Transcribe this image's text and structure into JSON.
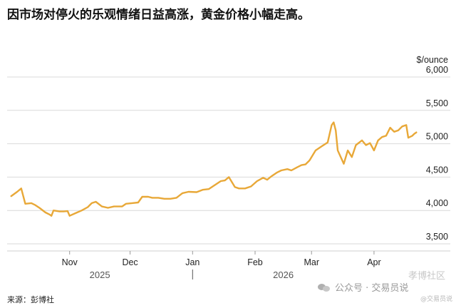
{
  "headline": "因市场对停火的乐观情绪日益高涨，黄金价格小幅走高。",
  "source": "来源：彭博社",
  "watermark": {
    "main": "公众号 · 交易员说",
    "small": "@交易员说",
    "faint": "孝博社区"
  },
  "chart_data": {
    "type": "line",
    "title": "",
    "ylabel": "$/ounce",
    "ylim": [
      3500,
      6000
    ],
    "yticks": [
      3500,
      4000,
      4500,
      5000,
      5500,
      6000
    ],
    "ytick_labels": [
      "3,500",
      "4,000",
      "4,500",
      "5,000",
      "5,500",
      "6,000"
    ],
    "xlim": [
      "2025-10-01",
      "2026-04-24"
    ],
    "xticks": [
      {
        "date": "2025-11-01",
        "label": "Nov"
      },
      {
        "date": "2025-12-01",
        "label": "Dec"
      },
      {
        "date": "2026-01-01",
        "label": "Jan"
      },
      {
        "date": "2026-02-01",
        "label": "Feb"
      },
      {
        "date": "2026-03-01",
        "label": "Mar"
      },
      {
        "date": "2026-04-01",
        "label": "Apr"
      }
    ],
    "year_labels": [
      {
        "date": "2025-11-16",
        "label": "2025"
      },
      {
        "date": "2026-02-15",
        "label": "2026"
      }
    ],
    "year_separators": [
      "2026-01-01"
    ],
    "grid": true,
    "color": "#E8A838",
    "series": [
      {
        "name": "",
        "points": [
          [
            "2025-10-03",
            4215
          ],
          [
            "2025-10-06",
            4280
          ],
          [
            "2025-10-08",
            4330
          ],
          [
            "2025-10-10",
            4100
          ],
          [
            "2025-10-13",
            4110
          ],
          [
            "2025-10-15",
            4080
          ],
          [
            "2025-10-17",
            4040
          ],
          [
            "2025-10-20",
            3970
          ],
          [
            "2025-10-22",
            3940
          ],
          [
            "2025-10-23",
            3920
          ],
          [
            "2025-10-24",
            4000
          ],
          [
            "2025-10-27",
            3985
          ],
          [
            "2025-10-29",
            3985
          ],
          [
            "2025-10-31",
            3990
          ],
          [
            "2025-11-01",
            3920
          ],
          [
            "2025-11-04",
            3960
          ],
          [
            "2025-11-07",
            4000
          ],
          [
            "2025-11-10",
            4050
          ],
          [
            "2025-11-12",
            4110
          ],
          [
            "2025-11-14",
            4130
          ],
          [
            "2025-11-17",
            4060
          ],
          [
            "2025-11-20",
            4040
          ],
          [
            "2025-11-23",
            4060
          ],
          [
            "2025-11-27",
            4060
          ],
          [
            "2025-11-29",
            4100
          ],
          [
            "2025-12-02",
            4110
          ],
          [
            "2025-12-05",
            4120
          ],
          [
            "2025-12-07",
            4205
          ],
          [
            "2025-12-10",
            4205
          ],
          [
            "2025-12-12",
            4190
          ],
          [
            "2025-12-15",
            4190
          ],
          [
            "2025-12-18",
            4175
          ],
          [
            "2025-12-21",
            4175
          ],
          [
            "2025-12-24",
            4190
          ],
          [
            "2025-12-27",
            4260
          ],
          [
            "2025-12-30",
            4280
          ],
          [
            "2026-01-03",
            4275
          ],
          [
            "2026-01-06",
            4310
          ],
          [
            "2026-01-09",
            4320
          ],
          [
            "2026-01-12",
            4380
          ],
          [
            "2026-01-15",
            4440
          ],
          [
            "2026-01-17",
            4450
          ],
          [
            "2026-01-19",
            4500
          ],
          [
            "2026-01-22",
            4350
          ],
          [
            "2026-01-24",
            4330
          ],
          [
            "2026-01-27",
            4330
          ],
          [
            "2026-01-30",
            4360
          ],
          [
            "2026-02-02",
            4440
          ],
          [
            "2026-02-05",
            4490
          ],
          [
            "2026-02-07",
            4460
          ],
          [
            "2026-02-09",
            4510
          ],
          [
            "2026-02-12",
            4570
          ],
          [
            "2026-02-14",
            4600
          ],
          [
            "2026-02-17",
            4620
          ],
          [
            "2026-02-19",
            4600
          ],
          [
            "2026-02-22",
            4650
          ],
          [
            "2026-02-24",
            4680
          ],
          [
            "2026-02-26",
            4690
          ],
          [
            "2026-02-28",
            4750
          ],
          [
            "2026-03-03",
            4900
          ],
          [
            "2026-03-06",
            4960
          ],
          [
            "2026-03-09",
            5020
          ],
          [
            "2026-03-11",
            5280
          ],
          [
            "2026-03-12",
            5320
          ],
          [
            "2026-03-13",
            5200
          ],
          [
            "2026-03-14",
            4900
          ],
          [
            "2026-03-17",
            4700
          ],
          [
            "2026-03-19",
            4900
          ],
          [
            "2026-03-21",
            4800
          ],
          [
            "2026-03-23",
            4980
          ],
          [
            "2026-03-26",
            5050
          ],
          [
            "2026-03-28",
            4980
          ],
          [
            "2026-03-30",
            5010
          ],
          [
            "2026-04-01",
            4900
          ],
          [
            "2026-04-03",
            5050
          ],
          [
            "2026-04-05",
            5100
          ],
          [
            "2026-04-07",
            5120
          ],
          [
            "2026-04-09",
            5240
          ],
          [
            "2026-04-11",
            5180
          ],
          [
            "2026-04-13",
            5200
          ],
          [
            "2026-04-15",
            5260
          ],
          [
            "2026-04-17",
            5280
          ],
          [
            "2026-04-18",
            5090
          ],
          [
            "2026-04-20",
            5120
          ],
          [
            "2026-04-21",
            5150
          ],
          [
            "2026-04-22",
            5170
          ]
        ]
      }
    ]
  }
}
